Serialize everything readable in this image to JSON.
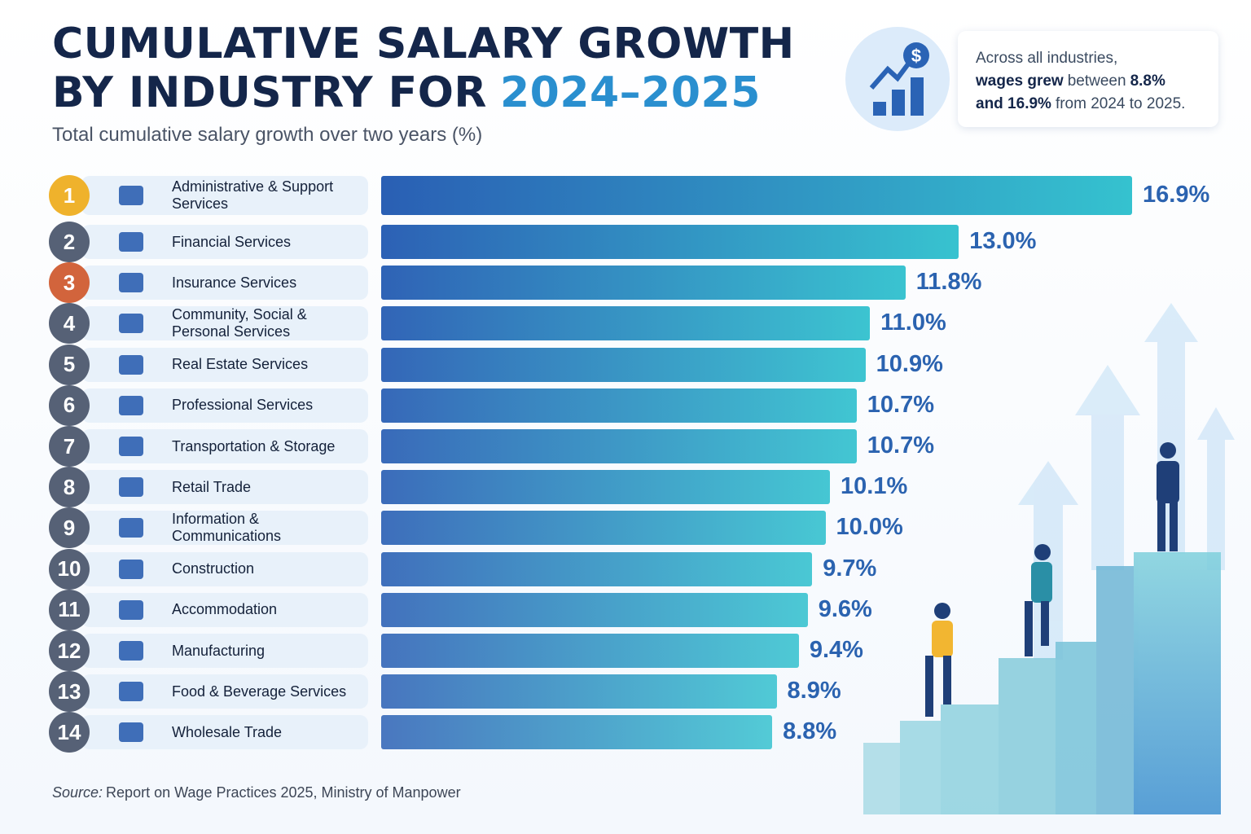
{
  "chart_data": {
    "type": "bar",
    "orientation": "horizontal",
    "title": {
      "line1": "CUMULATIVE SALARY GROWTH",
      "line2": "BY INDUSTRY FOR",
      "highlight": "2024–2025"
    },
    "subtitle": "Total cumulative salary growth over two years (%)",
    "callout": [
      [
        {
          "text": "Across all industries,",
          "bold": false
        }
      ],
      [
        {
          "text": "wages grew",
          "bold": true
        },
        {
          "text": "between",
          "bold": false
        },
        {
          "text": "8.8%",
          "bold": true
        }
      ],
      [
        {
          "text": "and 16.9%",
          "bold": true
        },
        {
          "text": "from 2024 to 2025.",
          "bold": false
        }
      ]
    ],
    "ranks": [
      1,
      2,
      3,
      4,
      5,
      6,
      7,
      8,
      9,
      10,
      11,
      12,
      13,
      14
    ],
    "badge_colors": [
      "#efb22c",
      "#566176",
      "#d2643c",
      "#566176",
      "#566176",
      "#566176",
      "#566176",
      "#566176",
      "#566176",
      "#566176",
      "#566176",
      "#566176",
      "#566176",
      "#566176"
    ],
    "categories": [
      "Administrative & Support Services",
      "Financial Services",
      "Insurance Services",
      "Community, Social & Personal Services",
      "Real Estate Services",
      "Professional Services",
      "Transportation & Storage",
      "Retail Trade",
      "Information & Communications",
      "Construction",
      "Accommodation",
      "Manufacturing",
      "Food & Beverage Services",
      "Wholesale Trade"
    ],
    "values": [
      16.9,
      13.0,
      11.8,
      11.0,
      10.9,
      10.7,
      10.7,
      10.1,
      10.0,
      9.7,
      9.6,
      9.4,
      8.9,
      8.8
    ],
    "value_labels": [
      "16.9%",
      "13.0%",
      "11.8%",
      "11.0%",
      "10.9%",
      "10.7%",
      "10.7%",
      "10.1%",
      "10.0%",
      "9.7%",
      "9.6%",
      "9.4%",
      "8.9%",
      "8.8%"
    ],
    "bar_gradient": [
      "#2a5fb4",
      "#35c2cf"
    ],
    "source_label": "Source:",
    "source": "Report on Wage Practices 2025, Ministry of Manpower"
  }
}
